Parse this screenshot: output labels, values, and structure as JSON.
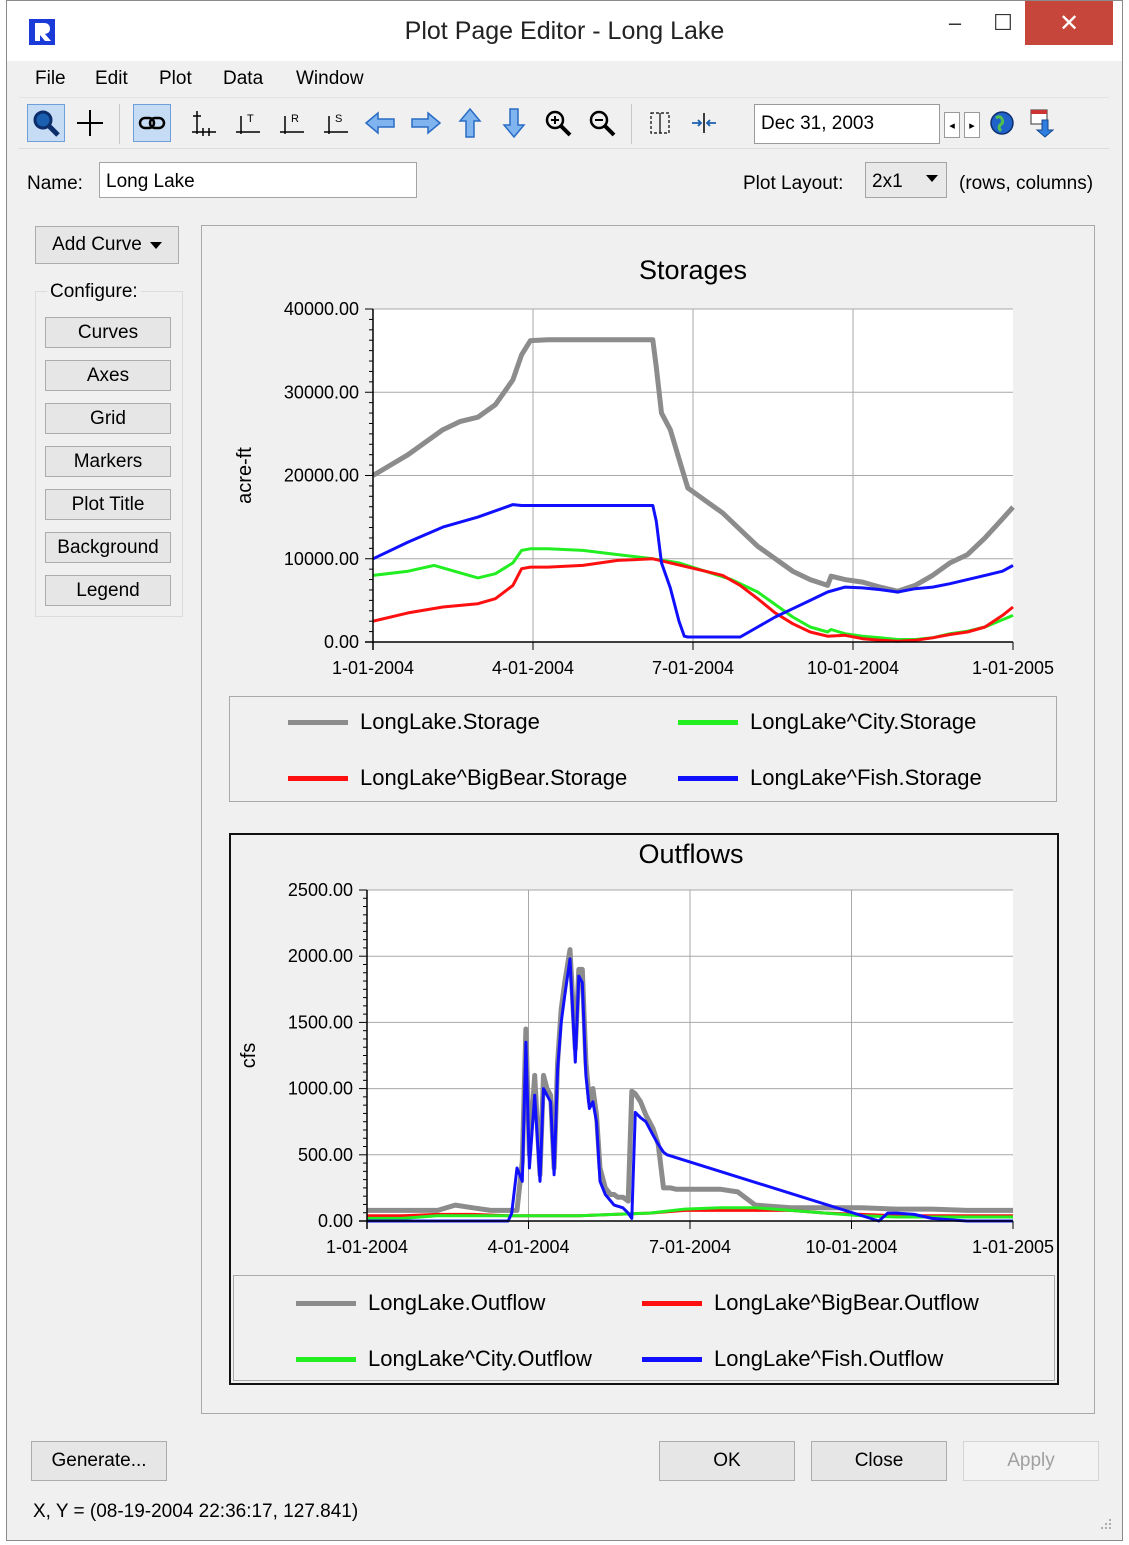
{
  "window": {
    "title": "Plot Page Editor - Long Lake",
    "min_glyph": "–",
    "max_glyph": "☐",
    "close_glyph": "✕"
  },
  "menu": [
    "File",
    "Edit",
    "Plot",
    "Data",
    "Window"
  ],
  "toolbar": {
    "icons": [
      "zoom-select-icon",
      "crosshair-icon",
      "link-icon",
      "axis-all-icon",
      "axis-top-icon",
      "axis-right-icon",
      "axis-scale-icon",
      "arrow-left-icon",
      "arrow-right-icon",
      "arrow-up-icon",
      "arrow-down-icon",
      "zoom-in-icon",
      "zoom-out-icon",
      "fit-width-icon",
      "compress-icon"
    ],
    "date": "Dec 31, 2003"
  },
  "name_field": {
    "label": "Name:",
    "value": "Long Lake"
  },
  "plot_layout": {
    "label": "Plot Layout:",
    "value": "2x1",
    "hint": "(rows, columns)"
  },
  "sidebar": {
    "add_curve": "Add Curve",
    "configure_label": "Configure:",
    "buttons": [
      "Curves",
      "Axes",
      "Grid",
      "Markers",
      "Plot Title",
      "Background",
      "Legend"
    ]
  },
  "colors": {
    "gray": "#8c8c8c",
    "red": "#ff1010",
    "green": "#22ee22",
    "blue": "#1010ff"
  },
  "chart_data": [
    {
      "type": "line",
      "title": "Storages",
      "ylabel": "acre-ft",
      "xlabel": "",
      "x_ticks": [
        "1-01-2004",
        "4-01-2004",
        "7-01-2004",
        "10-01-2004",
        "1-01-2005"
      ],
      "y_ticks": [
        "0.00",
        "10000.00",
        "20000.00",
        "30000.00",
        "40000.00"
      ],
      "xlim": [
        0,
        366
      ],
      "ylim": [
        0,
        40000
      ],
      "grid": true,
      "legend_position": "below",
      "series": [
        {
          "name": "LongLake.Storage",
          "color": "#8c8c8c",
          "x": [
            0,
            20,
            40,
            50,
            60,
            70,
            80,
            85,
            90,
            100,
            120,
            140,
            160,
            162,
            165,
            170,
            175,
            180,
            190,
            200,
            220,
            240,
            250,
            260,
            262,
            270,
            280,
            290,
            300,
            310,
            320,
            330,
            340,
            350,
            360,
            366
          ],
          "y": [
            20000,
            22500,
            25500,
            26500,
            27000,
            28500,
            31500,
            34500,
            36200,
            36300,
            36300,
            36300,
            36300,
            33000,
            27500,
            25500,
            22000,
            18500,
            17000,
            15500,
            11500,
            8500,
            7500,
            6800,
            7900,
            7500,
            7200,
            6600,
            6100,
            6800,
            8000,
            9500,
            10500,
            12500,
            14800,
            16200
          ]
        },
        {
          "name": "LongLake^City.Storage",
          "color": "#22ee22",
          "x": [
            0,
            20,
            35,
            50,
            60,
            70,
            80,
            85,
            90,
            100,
            120,
            140,
            160,
            175,
            190,
            205,
            220,
            230,
            240,
            250,
            260,
            262,
            270,
            280,
            290,
            300,
            310,
            320,
            330,
            340,
            350,
            366
          ],
          "y": [
            8000,
            8500,
            9200,
            8300,
            7700,
            8200,
            9500,
            11000,
            11200,
            11200,
            11000,
            10500,
            10000,
            9500,
            8500,
            7500,
            6000,
            4500,
            3000,
            1800,
            1200,
            1500,
            1000,
            700,
            500,
            300,
            300,
            500,
            1000,
            1300,
            1800,
            3200
          ]
        },
        {
          "name": "LongLake^BigBear.Storage",
          "color": "#ff1010",
          "x": [
            0,
            20,
            40,
            50,
            60,
            70,
            80,
            85,
            90,
            100,
            120,
            140,
            160,
            170,
            180,
            190,
            200,
            210,
            220,
            230,
            240,
            250,
            260,
            270,
            280,
            290,
            300,
            310,
            320,
            330,
            340,
            350,
            360,
            366
          ],
          "y": [
            2500,
            3500,
            4200,
            4400,
            4600,
            5200,
            6800,
            8800,
            9000,
            9000,
            9200,
            9800,
            10000,
            9500,
            9000,
            8500,
            8000,
            6800,
            5200,
            3500,
            2200,
            1200,
            700,
            800,
            400,
            200,
            100,
            200,
            500,
            900,
            1200,
            1800,
            3200,
            4200
          ]
        },
        {
          "name": "LongLake^Fish.Storage",
          "color": "#1010ff",
          "x": [
            0,
            20,
            40,
            60,
            80,
            85,
            90,
            100,
            120,
            140,
            160,
            162,
            165,
            170,
            175,
            178,
            180,
            190,
            200,
            210,
            220,
            230,
            240,
            250,
            260,
            270,
            280,
            290,
            300,
            310,
            320,
            330,
            340,
            350,
            360,
            366
          ],
          "y": [
            10000,
            12000,
            13800,
            15000,
            16500,
            16400,
            16400,
            16400,
            16400,
            16400,
            16400,
            14500,
            9500,
            6500,
            2500,
            700,
            600,
            600,
            600,
            600,
            1800,
            3000,
            4000,
            5000,
            6000,
            6600,
            6500,
            6300,
            6000,
            6400,
            6600,
            7000,
            7500,
            8000,
            8500,
            9200
          ]
        }
      ]
    },
    {
      "type": "line",
      "title": "Outflows",
      "ylabel": "cfs",
      "xlabel": "",
      "x_ticks": [
        "1-01-2004",
        "4-01-2004",
        "7-01-2004",
        "10-01-2004",
        "1-01-2005"
      ],
      "y_ticks": [
        "0.00",
        "500.00",
        "1000.00",
        "1500.00",
        "2000.00",
        "2500.00"
      ],
      "xlim": [
        0,
        366
      ],
      "ylim": [
        0,
        2500
      ],
      "grid": true,
      "legend_position": "below",
      "series": [
        {
          "name": "LongLake.Outflow",
          "color": "#8c8c8c",
          "x": [
            0,
            20,
            40,
            50,
            60,
            70,
            80,
            85,
            88,
            90,
            92,
            95,
            98,
            100,
            102,
            104,
            106,
            108,
            110,
            112,
            115,
            118,
            120,
            122,
            124,
            126,
            128,
            130,
            132,
            135,
            138,
            140,
            142,
            145,
            148,
            150,
            152,
            155,
            158,
            160,
            162,
            165,
            168,
            170,
            172,
            175,
            178,
            180,
            200,
            210,
            220,
            240,
            260,
            280,
            300,
            320,
            340,
            366
          ],
          "y": [
            80,
            80,
            80,
            120,
            100,
            80,
            80,
            80,
            450,
            1450,
            500,
            1100,
            350,
            1100,
            1000,
            950,
            400,
            1200,
            1600,
            1800,
            2050,
            1300,
            1900,
            1900,
            1200,
            900,
            1000,
            800,
            400,
            250,
            200,
            200,
            180,
            180,
            150,
            980,
            960,
            900,
            800,
            750,
            700,
            580,
            250,
            250,
            250,
            240,
            240,
            240,
            240,
            220,
            120,
            100,
            100,
            100,
            90,
            90,
            80,
            80
          ]
        },
        {
          "name": "LongLake^BigBear.Outflow",
          "color": "#ff1010",
          "x": [
            0,
            20,
            40,
            60,
            80,
            100,
            120,
            140,
            160,
            180,
            200,
            210,
            220,
            240,
            260,
            280,
            300,
            320,
            340,
            366
          ],
          "y": [
            40,
            40,
            50,
            50,
            40,
            40,
            40,
            50,
            60,
            80,
            80,
            80,
            80,
            80,
            60,
            50,
            40,
            40,
            40,
            40
          ]
        },
        {
          "name": "LongLake^City.Outflow",
          "color": "#22ee22",
          "x": [
            0,
            20,
            40,
            60,
            80,
            100,
            120,
            140,
            160,
            180,
            200,
            210,
            220,
            240,
            260,
            280,
            300,
            320,
            340,
            366
          ],
          "y": [
            20,
            20,
            40,
            40,
            40,
            40,
            40,
            50,
            60,
            90,
            100,
            100,
            100,
            80,
            60,
            40,
            30,
            30,
            30,
            30
          ]
        },
        {
          "name": "LongLake^Fish.Outflow",
          "color": "#1010ff",
          "x": [
            0,
            40,
            80,
            82,
            85,
            88,
            90,
            92,
            95,
            98,
            100,
            102,
            104,
            106,
            108,
            110,
            112,
            115,
            118,
            120,
            122,
            124,
            126,
            128,
            130,
            132,
            135,
            140,
            145,
            148,
            150,
            152,
            155,
            158,
            160,
            162,
            165,
            168,
            170,
            290,
            295,
            300,
            310,
            320,
            330,
            340,
            366
          ],
          "y": [
            0,
            0,
            0,
            60,
            400,
            300,
            1350,
            400,
            950,
            300,
            1000,
            950,
            900,
            350,
            1150,
            1500,
            1700,
            1980,
            1200,
            1850,
            1800,
            1100,
            850,
            900,
            750,
            300,
            200,
            120,
            100,
            60,
            20,
            820,
            780,
            750,
            700,
            650,
            580,
            520,
            500,
            0,
            60,
            60,
            50,
            20,
            10,
            0,
            0
          ]
        }
      ]
    }
  ],
  "buttons": {
    "generate": "Generate...",
    "ok": "OK",
    "close": "Close",
    "apply": "Apply"
  },
  "status": "X, Y = (08-19-2004 22:36:17, 127.841)"
}
